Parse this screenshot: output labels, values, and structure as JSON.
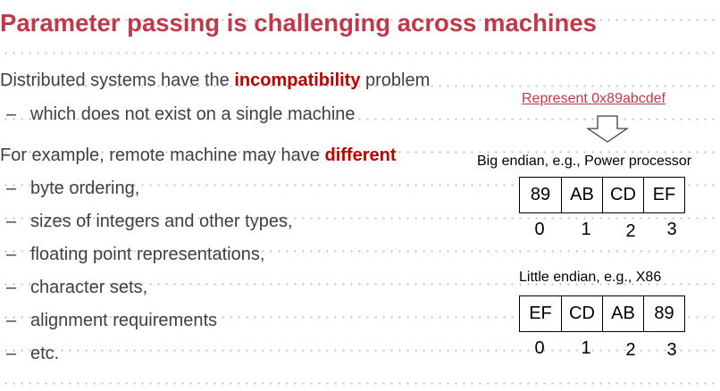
{
  "title": "Parameter passing is challenging across machines",
  "intro": {
    "prefix": "Distributed systems have the ",
    "highlight": "incompatibility",
    "suffix": " problem"
  },
  "intro_bullet": "which does not exist on a single machine",
  "example": {
    "prefix": "For example, remote machine may have ",
    "highlight": "different"
  },
  "bullet_dash": "–",
  "bullets": [
    "byte ordering,",
    "sizes of integers and other types,",
    "floating point representations,",
    "character sets,",
    "alignment requirements",
    "etc."
  ],
  "diagram": {
    "represent_label": "Represent 0x89abcdef",
    "big_endian": {
      "caption": "Big endian, e.g., Power processor",
      "bytes": [
        "89",
        "AB",
        "CD",
        "EF"
      ],
      "indices": [
        "0",
        "1",
        "2",
        "3"
      ]
    },
    "little_endian": {
      "caption": "Little endian, e.g., X86",
      "bytes": [
        "EF",
        "CD",
        "AB",
        "89"
      ],
      "indices": [
        "0",
        "1",
        "2",
        "3"
      ]
    }
  }
}
